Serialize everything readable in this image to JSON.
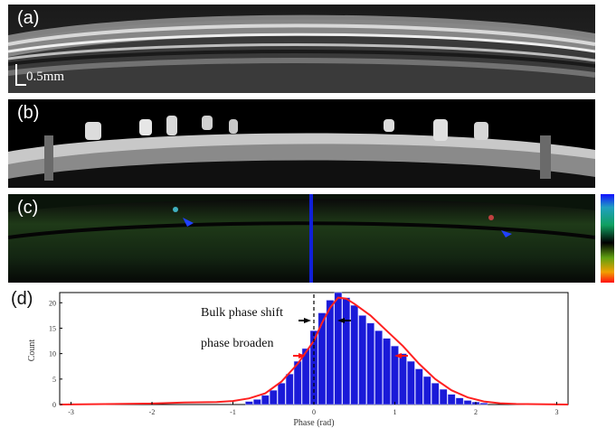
{
  "panels": {
    "a": {
      "label": "(a)",
      "scale_bar": "0.5mm"
    },
    "b": {
      "label": "(b)"
    },
    "c": {
      "label": "(c)",
      "colorbar_colors": [
        "#1010ff",
        "#20a0c0",
        "#10a060",
        "#000000",
        "#60a010",
        "#f0a000",
        "#ff1010"
      ]
    },
    "d": {
      "label": "(d)",
      "annotations": {
        "bulk": "Bulk phase shift",
        "broaden": "phase broaden"
      },
      "colors": {
        "bar": "#1a1ad8",
        "fit": "#ff2020",
        "arrow_bulk": "#000000",
        "arrow_broaden": "#ff1010"
      }
    }
  },
  "chart_data": {
    "type": "bar",
    "xlabel": "Phase (rad)",
    "ylabel": "Count",
    "xlim": [
      -3.14,
      3.14
    ],
    "ylim": [
      0,
      22
    ],
    "xticks": [
      -3,
      -2,
      -1,
      0,
      1,
      2,
      3
    ],
    "yticks": [
      0,
      5,
      10,
      15,
      20
    ],
    "x": [
      -0.8,
      -0.7,
      -0.6,
      -0.5,
      -0.4,
      -0.3,
      -0.2,
      -0.1,
      0.0,
      0.1,
      0.2,
      0.3,
      0.4,
      0.5,
      0.6,
      0.7,
      0.8,
      0.9,
      1.0,
      1.1,
      1.2,
      1.3,
      1.4,
      1.5,
      1.6,
      1.7,
      1.8,
      1.9,
      2.0,
      2.1
    ],
    "values": [
      0.6,
      1.0,
      1.8,
      2.8,
      4.2,
      6.0,
      8.5,
      11.0,
      14.5,
      18.0,
      20.5,
      22.0,
      21.0,
      19.5,
      17.5,
      16.0,
      14.5,
      13.0,
      11.5,
      10.0,
      8.5,
      7.0,
      5.5,
      4.2,
      3.0,
      2.0,
      1.3,
      0.8,
      0.5,
      0.3
    ],
    "fit": {
      "x": [
        -3.14,
        -2.0,
        -1.6,
        -1.2,
        -1.0,
        -0.8,
        -0.6,
        -0.4,
        -0.2,
        0.0,
        0.1,
        0.2,
        0.3,
        0.4,
        0.5,
        0.7,
        0.9,
        1.1,
        1.3,
        1.5,
        1.7,
        1.9,
        2.1,
        2.3,
        2.5,
        3.14
      ],
      "y": [
        0.0,
        0.2,
        0.4,
        0.5,
        0.7,
        1.2,
        2.2,
        4.5,
        8.0,
        12.5,
        16.0,
        19.0,
        21.0,
        20.8,
        19.8,
        17.5,
        14.5,
        11.5,
        8.0,
        5.0,
        2.8,
        1.4,
        0.6,
        0.25,
        0.1,
        0.0
      ]
    }
  }
}
